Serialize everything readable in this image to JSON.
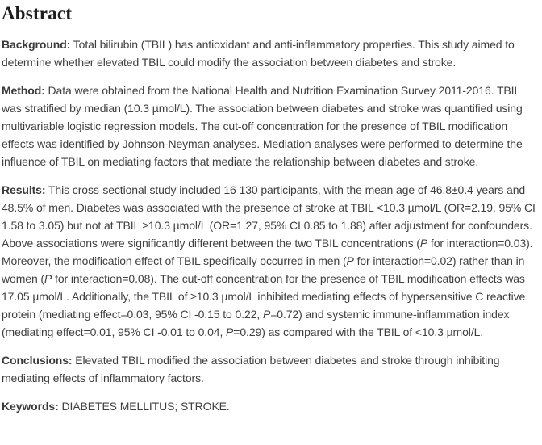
{
  "abstract": {
    "heading": "Abstract",
    "colors": {
      "background": "#ffffff",
      "heading_text": "#1d1d1d",
      "body_text": "#3f3f3f"
    },
    "paragraphs": [
      {
        "id": "background",
        "label": "Background:",
        "segments": [
          {
            "text": " Total bilirubin (TBIL) has antioxidant and anti-inflammatory properties. This study aimed to determine whether elevated TBIL could modify the association between diabetes and stroke.",
            "italic": false
          }
        ]
      },
      {
        "id": "method",
        "label": "Method:",
        "segments": [
          {
            "text": " Data were obtained from the National Health and Nutrition Examination Survey 2011-2016. TBIL was stratified by median (10.3 µmol/L). The association between diabetes and stroke was quantified using multivariable logistic regression models. The cut-off concentration for the presence of TBIL modification effects was identified by Johnson-Neyman analyses. Mediation analyses were performed to determine the influence of TBIL on mediating factors that mediate the relationship between diabetes and stroke.",
            "italic": false
          }
        ]
      },
      {
        "id": "results",
        "label": "Results:",
        "segments": [
          {
            "text": " This cross-sectional study included 16 130 participants, with the mean age of 46.8±0.4 years and 48.5% of men. Diabetes was associated with the presence of stroke at TBIL <10.3 µmol/L (OR=2.19, 95% CI 1.58 to 3.05) but not at TBIL ≥10.3 µmol/L (OR=1.27, 95% CI 0.85 to 1.88) after adjustment for confounders. Above associations were significantly different between the two TBIL concentrations (",
            "italic": false
          },
          {
            "text": "P",
            "italic": true
          },
          {
            "text": " for interaction=0.03). Moreover, the modification effect of TBIL specifically occurred in men (",
            "italic": false
          },
          {
            "text": "P",
            "italic": true
          },
          {
            "text": " for interaction=0.02) rather than in women (",
            "italic": false
          },
          {
            "text": "P",
            "italic": true
          },
          {
            "text": " for interaction=0.08). The cut-off concentration for the presence of TBIL modification effects was 17.05 µmol/L. Additionally, the TBIL of ≥10.3 µmol/L inhibited mediating effects of hypersensitive C reactive protein (mediating effect=0.03, 95% CI -0.15 to 0.22, ",
            "italic": false
          },
          {
            "text": "P",
            "italic": true
          },
          {
            "text": "=0.72) and systemic immune-inflammation index (mediating effect=0.01, 95% CI -0.01 to 0.04, ",
            "italic": false
          },
          {
            "text": "P",
            "italic": true
          },
          {
            "text": "=0.29) as compared with the TBIL of <10.3 µmol/L.",
            "italic": false
          }
        ]
      },
      {
        "id": "conclusions",
        "label": "Conclusions:",
        "segments": [
          {
            "text": " Elevated TBIL modified the association between diabetes and stroke through inhibiting mediating effects of inflammatory factors.",
            "italic": false
          }
        ]
      },
      {
        "id": "keywords",
        "label": "Keywords:",
        "segments": [
          {
            "text": " DIABETES MELLITUS; STROKE.",
            "italic": false
          }
        ]
      }
    ]
  }
}
